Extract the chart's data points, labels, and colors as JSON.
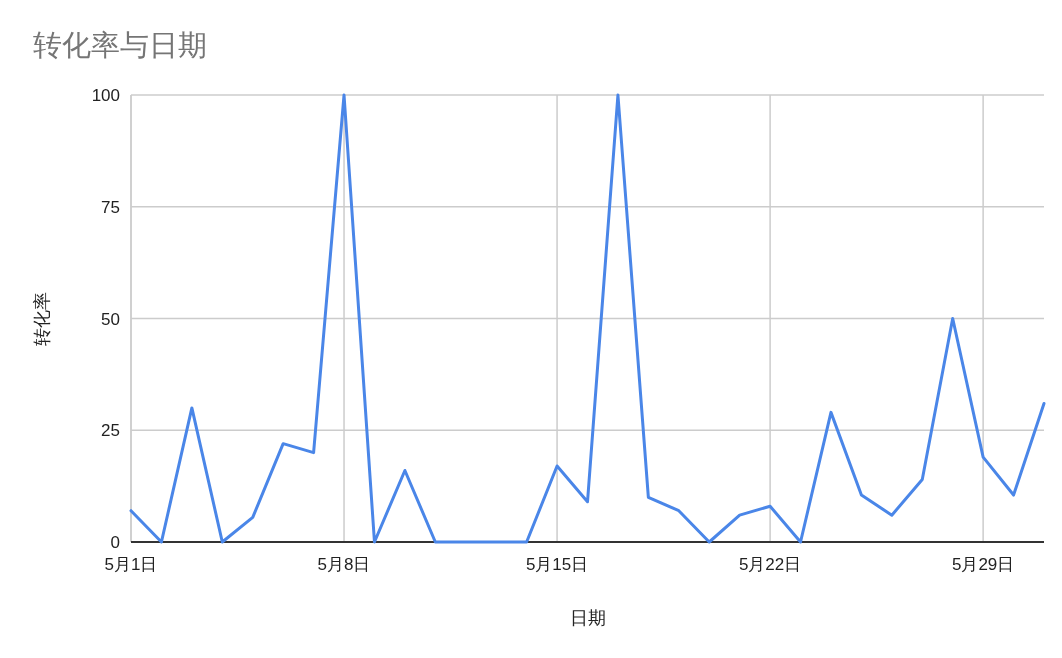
{
  "chart_data": {
    "type": "line",
    "title": "转化率与日期",
    "xlabel": "日期",
    "ylabel": "转化率",
    "x": [
      "--05-01",
      "--05-02",
      "--05-03",
      "--05-04",
      "--05-05",
      "--05-06",
      "--05-07",
      "--05-08",
      "--05-09",
      "--05-10",
      "--05-11",
      "--05-12",
      "--05-13",
      "--05-14",
      "--05-15",
      "--05-16",
      "--05-17",
      "--05-18",
      "--05-19",
      "--05-20",
      "--05-21",
      "--05-22",
      "--05-23",
      "--05-24",
      "--05-25",
      "--05-26",
      "--05-27",
      "--05-28",
      "--05-29",
      "--05-30",
      "--05-31"
    ],
    "series": [
      {
        "color": "#4a86e8",
        "values": [
          7,
          0,
          30,
          0,
          5.5,
          22,
          20,
          100,
          0,
          16,
          0,
          0,
          0,
          0,
          17,
          9,
          100,
          10,
          7,
          0,
          6,
          8,
          0,
          29,
          10.5,
          6,
          14,
          50,
          19,
          10.5,
          31
        ]
      }
    ],
    "xlim": [
      "--05-01",
      "--05-31"
    ],
    "xticks": [
      {
        "value": "--05-01",
        "label": "5月1日"
      },
      {
        "value": "--05-08",
        "label": "5月8日"
      },
      {
        "value": "--05-15",
        "label": "5月15日"
      },
      {
        "value": "--05-22",
        "label": "5月22日"
      },
      {
        "value": "--05-29",
        "label": "5月29日"
      }
    ],
    "ylim": [
      0,
      100
    ],
    "yticks": [
      0,
      25,
      50,
      75,
      100
    ],
    "grid": true
  }
}
